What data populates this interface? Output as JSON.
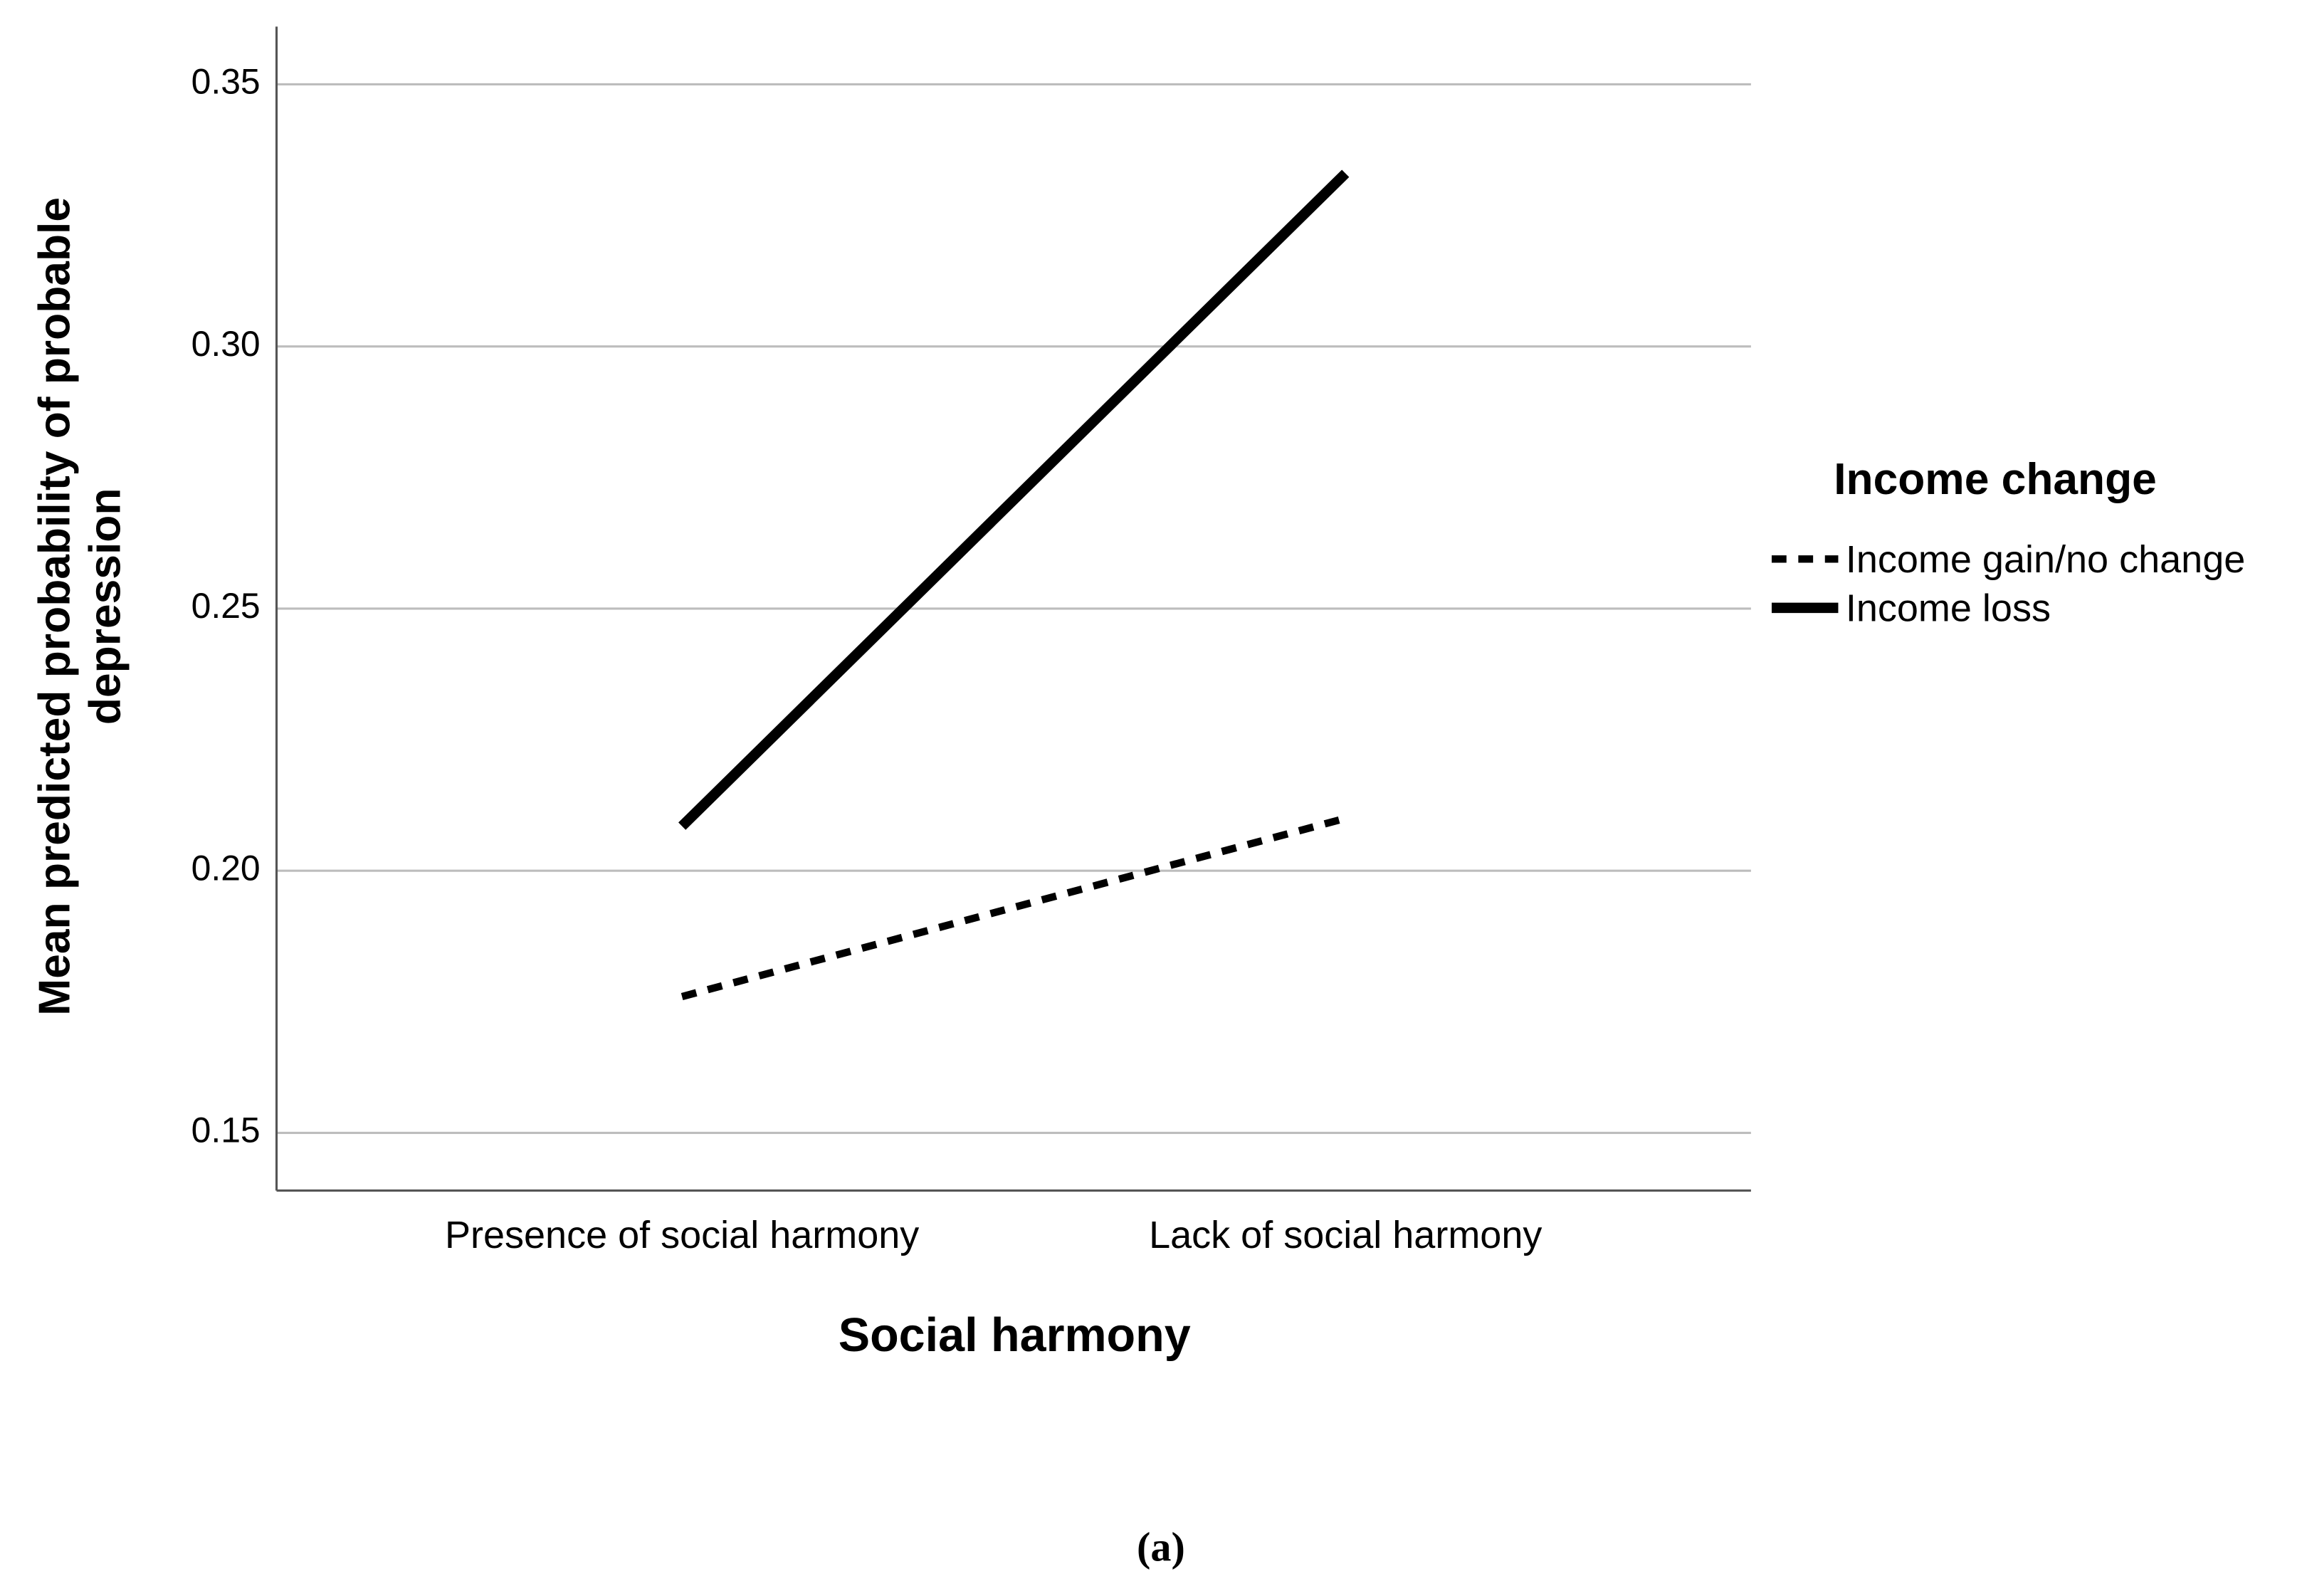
{
  "chart_data": {
    "type": "line",
    "y_label": "Mean predicted probability of probable depression",
    "x_label": "Social harmony",
    "caption": "(a)",
    "legend_title": "Income change",
    "legend_position": "right",
    "categories": [
      "Presence of social harmony",
      "Lack of social harmony"
    ],
    "series": [
      {
        "name": "Income gain/no change",
        "color": "#000000",
        "line_style": "dotted",
        "values": [
          0.176,
          0.21
        ]
      },
      {
        "name": "Income loss",
        "color": "#000000",
        "line_style": "solid",
        "values": [
          0.2085,
          0.333
        ]
      }
    ],
    "ylim": [
      0.139,
      0.361
    ],
    "yticks": [
      {
        "value": 0.15,
        "label": "0.15"
      },
      {
        "value": 0.2,
        "label": "0.20"
      },
      {
        "value": 0.25,
        "label": "0.25"
      },
      {
        "value": 0.3,
        "label": "0.30"
      },
      {
        "value": 0.35,
        "label": "0.35"
      }
    ],
    "grid": true
  }
}
